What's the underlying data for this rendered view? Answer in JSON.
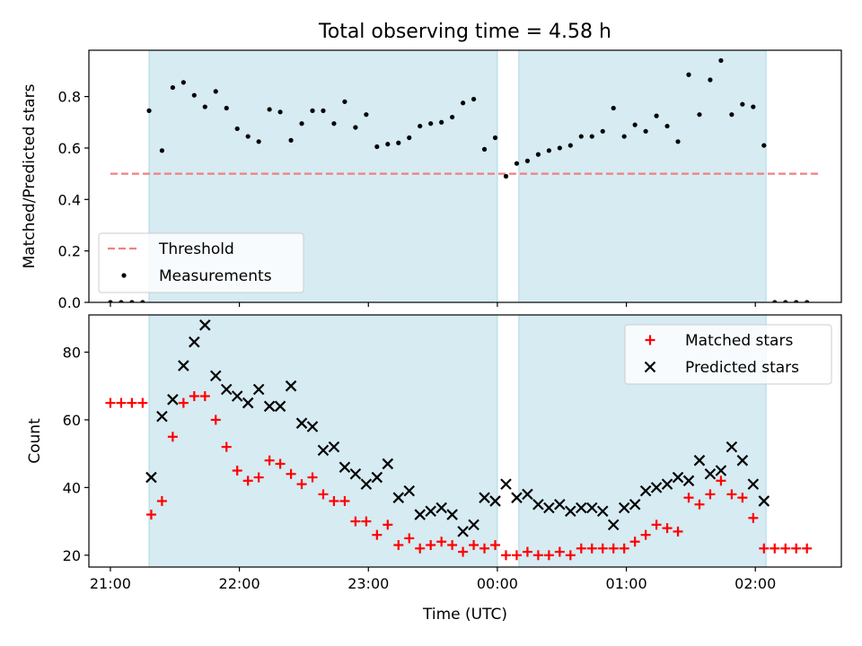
{
  "title": "Total observing time = 4.58 h",
  "xlabel": "Time (UTC)",
  "x_ticks": [
    "21:00",
    "22:00",
    "23:00",
    "00:00",
    "01:00",
    "02:00"
  ],
  "colors": {
    "shade": "#add8e6",
    "threshold": "#f08080",
    "matched": "#ff0000",
    "predicted": "#000000"
  },
  "chart_data": [
    {
      "type": "scatter",
      "ylabel": "Matched/Predicted stars",
      "ylim": [
        0,
        0.98
      ],
      "y_ticks": [
        "0.0",
        "0.2",
        "0.4",
        "0.6",
        "0.8"
      ],
      "xlim": [
        "20:50",
        "02:40"
      ],
      "shaded_ranges": [
        [
          "21:18",
          "00:00"
        ],
        [
          "00:10",
          "02:05"
        ]
      ],
      "threshold": {
        "name": "Threshold",
        "value": 0.5,
        "x_range": [
          "21:00",
          "02:30"
        ]
      },
      "legend": {
        "placement": "lower-left",
        "entries": [
          "Threshold",
          "Measurements"
        ]
      },
      "series": [
        {
          "name": "Measurements",
          "points": [
            [
              "21:00",
              0.0
            ],
            [
              "21:05",
              0.0
            ],
            [
              "21:10",
              0.0
            ],
            [
              "21:15",
              0.0
            ],
            [
              "21:18",
              0.745
            ],
            [
              "21:24",
              0.59
            ],
            [
              "21:29",
              0.835
            ],
            [
              "21:34",
              0.855
            ],
            [
              "21:39",
              0.805
            ],
            [
              "21:44",
              0.76
            ],
            [
              "21:49",
              0.82
            ],
            [
              "21:54",
              0.755
            ],
            [
              "21:59",
              0.675
            ],
            [
              "22:04",
              0.645
            ],
            [
              "22:09",
              0.625
            ],
            [
              "22:14",
              0.75
            ],
            [
              "22:19",
              0.74
            ],
            [
              "22:24",
              0.63
            ],
            [
              "22:29",
              0.695
            ],
            [
              "22:34",
              0.745
            ],
            [
              "22:39",
              0.745
            ],
            [
              "22:44",
              0.695
            ],
            [
              "22:49",
              0.78
            ],
            [
              "22:54",
              0.68
            ],
            [
              "22:59",
              0.73
            ],
            [
              "23:04",
              0.605
            ],
            [
              "23:09",
              0.615
            ],
            [
              "23:14",
              0.62
            ],
            [
              "23:19",
              0.64
            ],
            [
              "23:24",
              0.685
            ],
            [
              "23:29",
              0.695
            ],
            [
              "23:34",
              0.7
            ],
            [
              "23:39",
              0.72
            ],
            [
              "23:44",
              0.775
            ],
            [
              "23:49",
              0.79
            ],
            [
              "23:54",
              0.595
            ],
            [
              "23:59",
              0.64
            ],
            [
              "00:04",
              0.49
            ],
            [
              "00:09",
              0.54
            ],
            [
              "00:14",
              0.55
            ],
            [
              "00:19",
              0.575
            ],
            [
              "00:24",
              0.59
            ],
            [
              "00:29",
              0.6
            ],
            [
              "00:34",
              0.61
            ],
            [
              "00:39",
              0.645
            ],
            [
              "00:44",
              0.645
            ],
            [
              "00:49",
              0.665
            ],
            [
              "00:54",
              0.755
            ],
            [
              "00:59",
              0.645
            ],
            [
              "01:04",
              0.69
            ],
            [
              "01:09",
              0.665
            ],
            [
              "01:14",
              0.725
            ],
            [
              "01:19",
              0.685
            ],
            [
              "01:24",
              0.625
            ],
            [
              "01:29",
              0.885
            ],
            [
              "01:34",
              0.73
            ],
            [
              "01:39",
              0.865
            ],
            [
              "01:44",
              0.94
            ],
            [
              "01:49",
              0.73
            ],
            [
              "01:54",
              0.77
            ],
            [
              "01:59",
              0.76
            ],
            [
              "02:04",
              0.61
            ],
            [
              "02:09",
              0.0
            ],
            [
              "02:14",
              0.0
            ],
            [
              "02:19",
              0.0
            ],
            [
              "02:24",
              0.0
            ]
          ]
        }
      ]
    },
    {
      "type": "scatter",
      "ylabel": "Count",
      "ylim": [
        16.5,
        91
      ],
      "y_ticks": [
        "20",
        "40",
        "60",
        "80"
      ],
      "xlim": [
        "20:50",
        "02:40"
      ],
      "shaded_ranges": [
        [
          "21:18",
          "00:00"
        ],
        [
          "00:10",
          "02:05"
        ]
      ],
      "legend": {
        "placement": "upper-right",
        "entries": [
          "Matched stars",
          "Predicted stars"
        ]
      },
      "series": [
        {
          "name": "Matched stars",
          "points": [
            [
              "21:00",
              65
            ],
            [
              "21:05",
              65
            ],
            [
              "21:10",
              65
            ],
            [
              "21:15",
              65
            ],
            [
              "21:19",
              32
            ],
            [
              "21:24",
              36
            ],
            [
              "21:29",
              55
            ],
            [
              "21:34",
              65
            ],
            [
              "21:39",
              67
            ],
            [
              "21:44",
              67
            ],
            [
              "21:49",
              60
            ],
            [
              "21:54",
              52
            ],
            [
              "21:59",
              45
            ],
            [
              "22:04",
              42
            ],
            [
              "22:09",
              43
            ],
            [
              "22:14",
              48
            ],
            [
              "22:19",
              47
            ],
            [
              "22:24",
              44
            ],
            [
              "22:29",
              41
            ],
            [
              "22:34",
              43
            ],
            [
              "22:39",
              38
            ],
            [
              "22:44",
              36
            ],
            [
              "22:49",
              36
            ],
            [
              "22:54",
              30
            ],
            [
              "22:59",
              30
            ],
            [
              "23:04",
              26
            ],
            [
              "23:09",
              29
            ],
            [
              "23:14",
              23
            ],
            [
              "23:19",
              25
            ],
            [
              "23:24",
              22
            ],
            [
              "23:29",
              23
            ],
            [
              "23:34",
              24
            ],
            [
              "23:39",
              23
            ],
            [
              "23:44",
              21
            ],
            [
              "23:49",
              23
            ],
            [
              "23:54",
              22
            ],
            [
              "23:59",
              23
            ],
            [
              "00:04",
              20
            ],
            [
              "00:09",
              20
            ],
            [
              "00:14",
              21
            ],
            [
              "00:19",
              20
            ],
            [
              "00:24",
              20
            ],
            [
              "00:29",
              21
            ],
            [
              "00:34",
              20
            ],
            [
              "00:39",
              22
            ],
            [
              "00:44",
              22
            ],
            [
              "00:49",
              22
            ],
            [
              "00:54",
              22
            ],
            [
              "00:59",
              22
            ],
            [
              "01:04",
              24
            ],
            [
              "01:09",
              26
            ],
            [
              "01:14",
              29
            ],
            [
              "01:19",
              28
            ],
            [
              "01:24",
              27
            ],
            [
              "01:29",
              37
            ],
            [
              "01:34",
              35
            ],
            [
              "01:39",
              38
            ],
            [
              "01:44",
              42
            ],
            [
              "01:49",
              38
            ],
            [
              "01:54",
              37
            ],
            [
              "01:59",
              31
            ],
            [
              "02:04",
              22
            ],
            [
              "02:09",
              22
            ],
            [
              "02:14",
              22
            ],
            [
              "02:19",
              22
            ],
            [
              "02:24",
              22
            ]
          ]
        },
        {
          "name": "Predicted stars",
          "points": [
            [
              "21:19",
              43
            ],
            [
              "21:24",
              61
            ],
            [
              "21:29",
              66
            ],
            [
              "21:34",
              76
            ],
            [
              "21:39",
              83
            ],
            [
              "21:44",
              88
            ],
            [
              "21:49",
              73
            ],
            [
              "21:54",
              69
            ],
            [
              "21:59",
              67
            ],
            [
              "22:04",
              65
            ],
            [
              "22:09",
              69
            ],
            [
              "22:14",
              64
            ],
            [
              "22:19",
              64
            ],
            [
              "22:24",
              70
            ],
            [
              "22:29",
              59
            ],
            [
              "22:34",
              58
            ],
            [
              "22:39",
              51
            ],
            [
              "22:44",
              52
            ],
            [
              "22:49",
              46
            ],
            [
              "22:54",
              44
            ],
            [
              "22:59",
              41
            ],
            [
              "23:04",
              43
            ],
            [
              "23:09",
              47
            ],
            [
              "23:14",
              37
            ],
            [
              "23:19",
              39
            ],
            [
              "23:24",
              32
            ],
            [
              "23:29",
              33
            ],
            [
              "23:34",
              34
            ],
            [
              "23:39",
              32
            ],
            [
              "23:44",
              27
            ],
            [
              "23:49",
              29
            ],
            [
              "23:54",
              37
            ],
            [
              "23:59",
              36
            ],
            [
              "00:04",
              41
            ],
            [
              "00:09",
              37
            ],
            [
              "00:14",
              38
            ],
            [
              "00:19",
              35
            ],
            [
              "00:24",
              34
            ],
            [
              "00:29",
              35
            ],
            [
              "00:34",
              33
            ],
            [
              "00:39",
              34
            ],
            [
              "00:44",
              34
            ],
            [
              "00:49",
              33
            ],
            [
              "00:54",
              29
            ],
            [
              "00:59",
              34
            ],
            [
              "01:04",
              35
            ],
            [
              "01:09",
              39
            ],
            [
              "01:14",
              40
            ],
            [
              "01:19",
              41
            ],
            [
              "01:24",
              43
            ],
            [
              "01:29",
              42
            ],
            [
              "01:34",
              48
            ],
            [
              "01:39",
              44
            ],
            [
              "01:44",
              45
            ],
            [
              "01:49",
              52
            ],
            [
              "01:54",
              48
            ],
            [
              "01:59",
              41
            ],
            [
              "02:04",
              36
            ]
          ]
        }
      ]
    }
  ]
}
